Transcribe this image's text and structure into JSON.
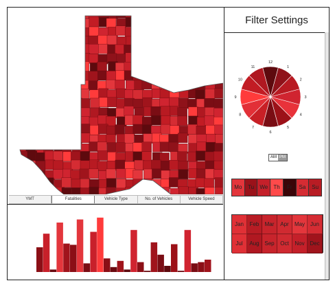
{
  "filter_panel": {
    "title": "Filter Settings",
    "clock_hours": [
      "12",
      "1",
      "2",
      "3",
      "4",
      "5",
      "6",
      "7",
      "8",
      "9",
      "10",
      "11"
    ],
    "clock_colors": [
      "#5e0a0e",
      "#8f121a",
      "#b81a22",
      "#d02430",
      "#e8323a",
      "#9c1118",
      "#7a0d14",
      "#c82026",
      "#e23037",
      "#ff3b3b",
      "#c21c24",
      "#b01821"
    ],
    "am_label": "AM",
    "pm_label": "PM",
    "days": [
      {
        "label": "Mo",
        "color": "#e3363c"
      },
      {
        "label": "Tu",
        "color": "#9a121a"
      },
      {
        "label": "We",
        "color": "#c4202a"
      },
      {
        "label": "Th",
        "color": "#ff4a4a"
      },
      {
        "label": "Fr",
        "color": "#3a0508"
      },
      {
        "label": "Sa",
        "color": "#d52c33"
      },
      {
        "label": "Su",
        "color": "#b81c24"
      }
    ],
    "months": [
      {
        "label": "Jan",
        "color": "#e03036"
      },
      {
        "label": "Feb",
        "color": "#b81c24"
      },
      {
        "label": "Mar",
        "color": "#c8242c"
      },
      {
        "label": "Apr",
        "color": "#d02a31"
      },
      {
        "label": "May",
        "color": "#e3363c"
      },
      {
        "label": "Jun",
        "color": "#d52c33"
      },
      {
        "label": "Jul",
        "color": "#e03036"
      },
      {
        "label": "Aug",
        "color": "#b01821"
      },
      {
        "label": "Sep",
        "color": "#c8242c"
      },
      {
        "label": "Oct",
        "color": "#d02a31"
      },
      {
        "label": "Nov",
        "color": "#c4202a"
      },
      {
        "label": "Dec",
        "color": "#a0141c"
      }
    ]
  },
  "map_tabs": [
    "YMT",
    "Fatalities",
    "Vehicle Type",
    "No. of Vehicles",
    "Vehicle Speed"
  ],
  "active_tab": "Fatalities",
  "bar_values": [
    40,
    62,
    4,
    80,
    46,
    44,
    85,
    14,
    65,
    88,
    22,
    8,
    18,
    4,
    68,
    16,
    2,
    48,
    28,
    10,
    45,
    2,
    68,
    14,
    16,
    20
  ],
  "bar_colors": [
    "#8b0f16",
    "#c8202a",
    "#6a0a10",
    "#e3363c",
    "#a0141c",
    "#8b0f16",
    "#e3363c",
    "#7a0d14",
    "#c8202a",
    "#ff3b3b",
    "#8b0f16",
    "#6a0a10",
    "#a0141c",
    "#5e0a0e",
    "#d02430",
    "#8b0f16",
    "#6a0a10",
    "#a0141c",
    "#7a0d14",
    "#5e0a0e",
    "#9c1118",
    "#6a0a10",
    "#d02430",
    "#7a0d14",
    "#8b0f16",
    "#a0141c"
  ],
  "colors": {
    "dark": "#5e0a0e",
    "mid": "#c8202a",
    "light": "#ff3b3b"
  }
}
